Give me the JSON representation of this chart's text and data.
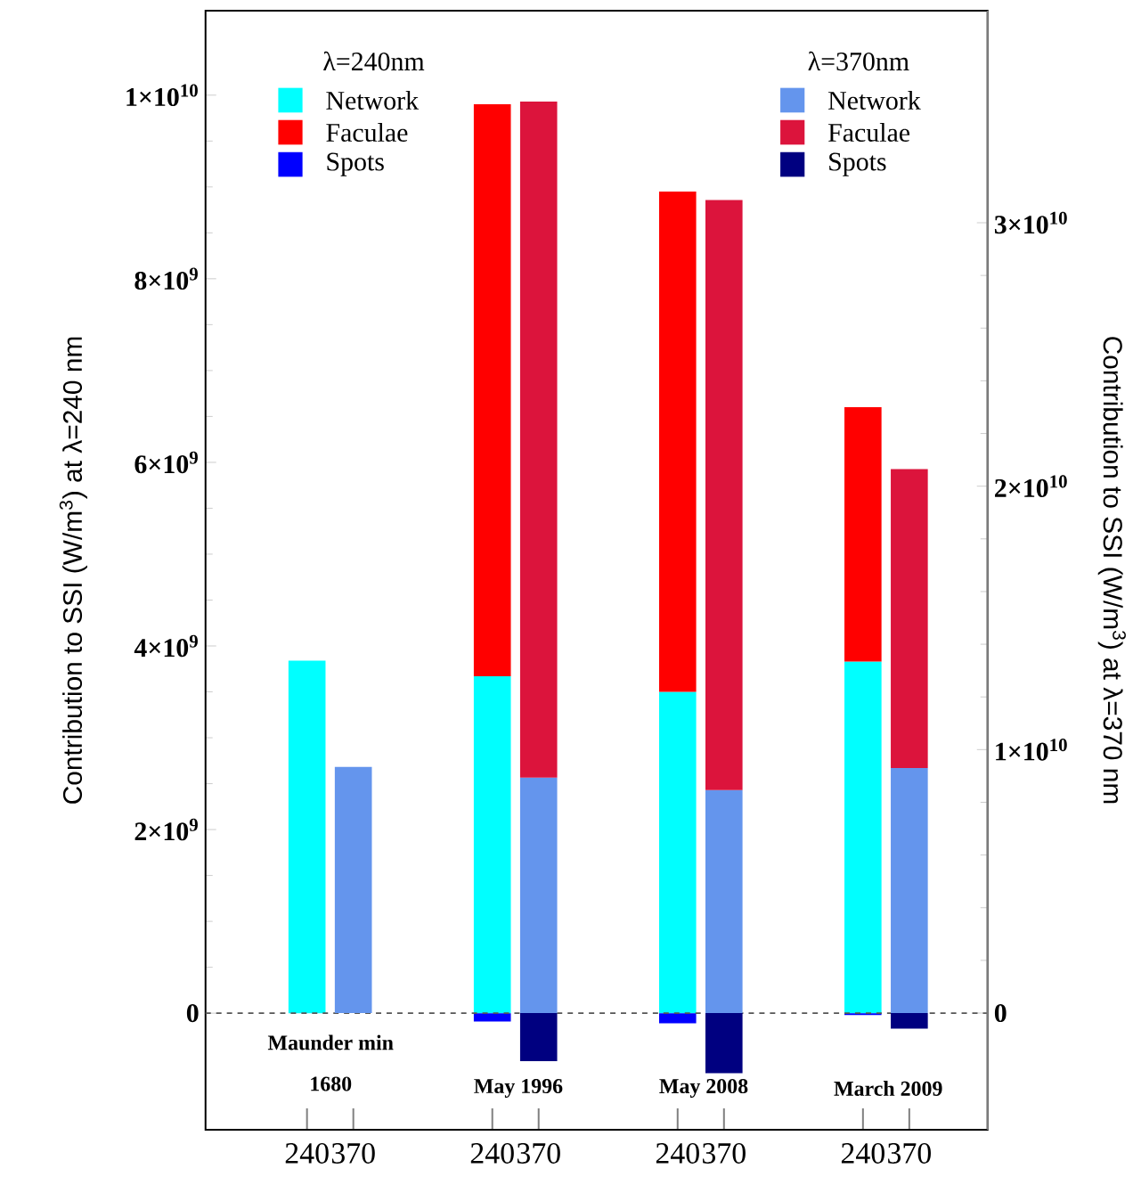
{
  "chart_data": {
    "type": "bar",
    "stacked": true,
    "categories": [
      "240",
      "370",
      "240",
      "370",
      "240",
      "370",
      "240",
      "370"
    ],
    "ylabel": "Contribution to SSI (W/m$^{3}$) at λ=240 nm",
    "y2label": "Contribution to SSI (W/m$^{3}$) at λ=370 nm",
    "ylim": [
      -1270000000.0,
      10920000000.0
    ],
    "yticks": [
      0,
      {
        "value": 2000000000.0,
        "label": "2×10$^{9}$"
      },
      {
        "value": 4000000000.0,
        "label": "4×10$^{9}$"
      },
      {
        "value": 6000000000.0,
        "label": "6×10$^{9}$"
      },
      {
        "value": 8000000000.0,
        "label": "8×10$^{9}$"
      },
      {
        "value": 10000000000.0,
        "label": "1×10$^{10}$"
      }
    ],
    "y2lim": [
      -4430000000.0,
      38050000000.0
    ],
    "y2ticks": [
      0,
      {
        "value": 10000000000.0,
        "label": "1×10$^{10}$"
      },
      {
        "value": 20000000000.0,
        "label": "2×10$^{10}$"
      },
      {
        "value": 30000000000.0,
        "label": "3×10$^{10}$"
      }
    ],
    "series": [
      {
        "name": "Network",
        "color": "#00ffff",
        "values": [
          3840000000.0,
          null,
          3670000000.0,
          null,
          3500000000.0,
          null,
          3830000000.0,
          null
        ]
      },
      {
        "name": "Faculae",
        "color": "#ff0000",
        "values": [
          null,
          null,
          6230000000.0,
          null,
          5450000000.0,
          null,
          2770000000.0,
          null
        ]
      },
      {
        "name": "Spots",
        "color": "#0000ff",
        "values": [
          null,
          null,
          -90000000.0,
          null,
          -110000000.0,
          null,
          -20000000.0,
          null
        ]
      },
      {
        "name": "Network",
        "color": "#6495ed",
        "axis": "y2",
        "values": [
          null,
          9340000000.0,
          null,
          8940000000.0,
          null,
          8460000000.0,
          null,
          9300000000.0
        ]
      },
      {
        "name": "Faculae",
        "color": "#dc143c",
        "axis": "y2",
        "values": [
          null,
          null,
          null,
          25660000000.0,
          null,
          22400000000.0,
          null,
          11350000000.0
        ]
      },
      {
        "name": "Spots",
        "color": "#000080",
        "axis": "y2",
        "values": [
          null,
          null,
          null,
          -1830000000.0,
          null,
          -2280000000.0,
          null,
          -590000000.0
        ]
      }
    ],
    "ref_lines": [
      {
        "axis": "y",
        "value": 0,
        "color": "#555555",
        "line_style": "dashed"
      }
    ],
    "legend": "top",
    "annotations": [
      "λ=240nm",
      "λ=370nm",
      "Maunder min",
      "1680",
      "May 1996",
      "May 2008",
      "March 2009"
    ]
  }
}
